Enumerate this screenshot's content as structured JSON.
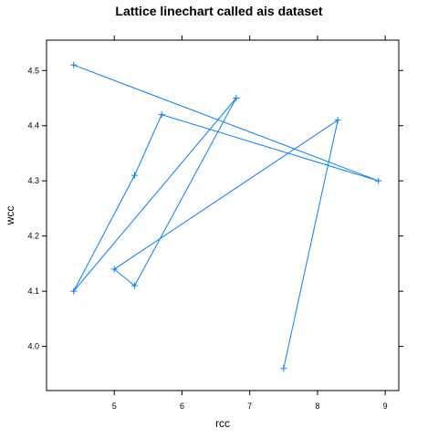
{
  "chart_data": {
    "type": "line",
    "title": "Lattice linechart called ais dataset",
    "xlabel": "rcc",
    "ylabel": "wcc",
    "xlim": [
      4.0,
      9.2
    ],
    "ylim": [
      3.92,
      4.555
    ],
    "xticks": [
      5,
      6,
      7,
      8,
      9
    ],
    "yticks": [
      4.0,
      4.1,
      4.2,
      4.3,
      4.4,
      4.5
    ],
    "xtick_labels": [
      "5",
      "6",
      "7",
      "8",
      "9"
    ],
    "ytick_labels": [
      "4.0",
      "4.1",
      "4.2",
      "4.3",
      "4.4",
      "4.5"
    ],
    "grid": false,
    "marker": "plus",
    "series": [
      {
        "name": "ais",
        "color": "#0080ff",
        "x": [
          4.4,
          8.9,
          5.7,
          5.3,
          4.4,
          6.8,
          5.3,
          5.0,
          8.3,
          7.5
        ],
        "y": [
          4.51,
          4.3,
          4.42,
          4.31,
          4.1,
          4.45,
          4.11,
          4.14,
          4.41,
          3.96
        ]
      }
    ]
  }
}
